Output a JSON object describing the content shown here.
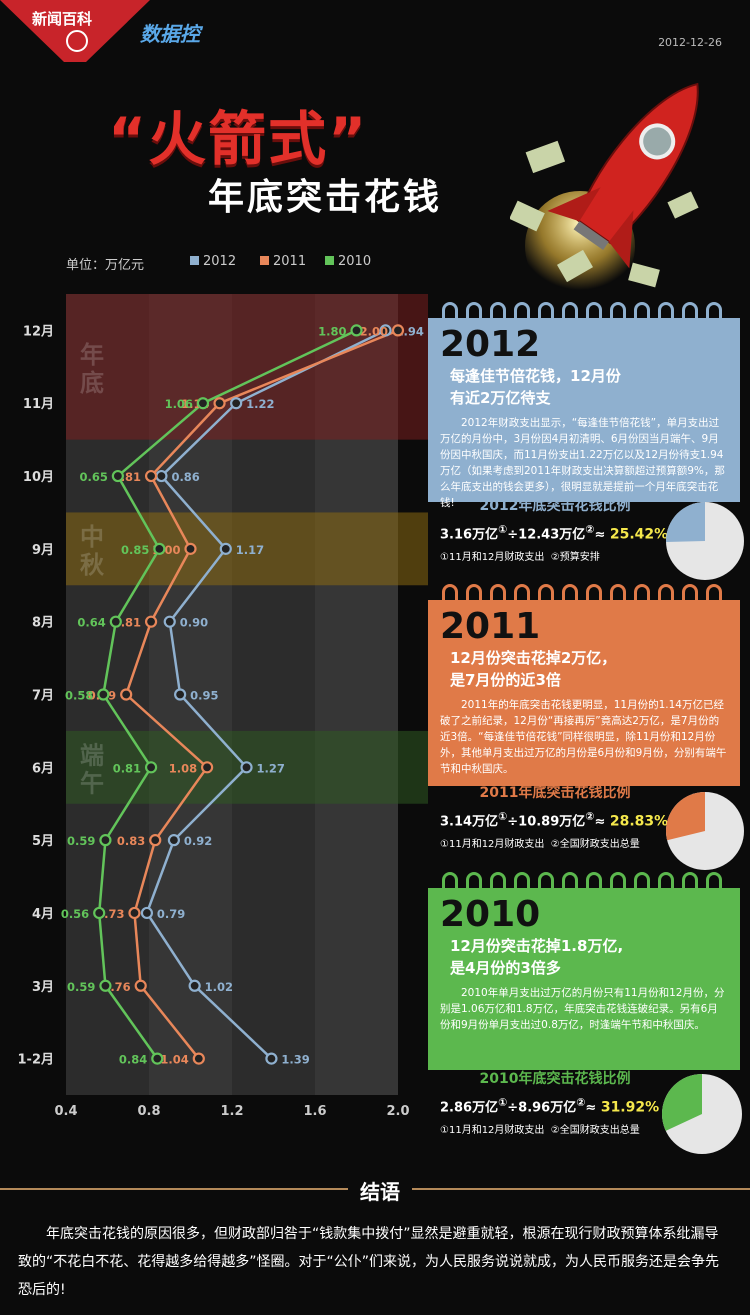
{
  "header": {
    "brand": "新闻百科",
    "column": "数据控",
    "date": "2012-12-26",
    "title_main": "“火箭式”",
    "title_sub": "年底突击花钱"
  },
  "unit_label": "单位：万亿元",
  "chart_data": {
    "type": "line",
    "orientation": "horizontal-value-axis",
    "ylabel": "单位：万亿元",
    "categories": [
      "1-2月",
      "3月",
      "4月",
      "5月",
      "6月",
      "7月",
      "8月",
      "9月",
      "10月",
      "11月",
      "12月"
    ],
    "xlim": [
      0.4,
      2.0
    ],
    "x_ticks": [
      "0.4",
      "0.8",
      "1.2",
      "1.6",
      "2.0"
    ],
    "series": [
      {
        "name": "2012",
        "color": "#8fb0cf",
        "values": [
          1.39,
          1.02,
          0.79,
          0.92,
          1.27,
          0.95,
          0.9,
          1.17,
          0.86,
          1.22,
          1.94
        ]
      },
      {
        "name": "2011",
        "color": "#e8875a",
        "values": [
          1.04,
          0.76,
          0.73,
          0.83,
          1.08,
          0.69,
          0.81,
          1.0,
          0.81,
          1.14,
          2.0
        ]
      },
      {
        "name": "2010",
        "color": "#62c45a",
        "values": [
          0.84,
          0.59,
          0.56,
          0.59,
          0.81,
          0.58,
          0.64,
          0.85,
          0.65,
          1.06,
          1.8
        ]
      }
    ],
    "bands": [
      {
        "label": "年底",
        "color": "#7a1f1f"
      },
      {
        "label": "中秋",
        "color": "#8a6a12"
      },
      {
        "label": "端午",
        "color": "#2f5a22"
      }
    ],
    "legend": "top"
  },
  "cards": [
    {
      "year": "2012",
      "headline": "每逢佳节倍花钱，12月份有近2万亿待支",
      "paragraph": "2012年财政支出显示，“每逢佳节倍花钱”，单月支出过万亿的月份中，3月份因4月初清明、6月份因当月端午、9月份因中秋国庆，而11月份支出1.22万亿以及12月份待支1.94万亿（如果考虑到2011年财政支出决算额超过预算额9%，那么年底支出的钱会更多），很明显就是提前一个月年底突击花钱!",
      "color": "#8fb0cf"
    },
    {
      "year": "2011",
      "headline": "12月份突击花掉2万亿，是7月份的近3倍",
      "paragraph": "2011年的年底突击花钱更明显，11月份的1.14万亿已经破了之前纪录，12月份“再接再厉”竟高达2万亿，是7月份的近3倍。“每逢佳节倍花钱”同样很明显，除11月份和12月份外，其他单月支出过万亿的月份是6月份和9月份，分别有端午节和中秋国庆。",
      "color": "#e07a48"
    },
    {
      "year": "2010",
      "headline": "12月份突击花掉1.8万亿,是4月份的3倍多",
      "paragraph": "2010年单月支出过万亿的月份只有11月份和12月份，分别是1.06万亿和1.8万亿，年底突击花钱连破纪录。另有6月份和9月份单月支出过0.8万亿，时逢端午节和中秋国庆。",
      "color": "#5cb84e"
    }
  ],
  "ratios": [
    {
      "title": "2012年底突击花钱比例",
      "a": "3.16万亿",
      "b": "12.43万亿",
      "result": "25.42%",
      "note1": "①11月和12月财政支出",
      "note2": "②预算安排",
      "fraction": 0.2542,
      "color": "#8fb0cf"
    },
    {
      "title": "2011年底突击花钱比例",
      "a": "3.14万亿",
      "b": "10.89万亿",
      "result": "28.83%",
      "note1": "①11月和12月财政支出",
      "note2": "②全国财政支出总量",
      "fraction": 0.2883,
      "color": "#e07a48"
    },
    {
      "title": "2010年底突击花钱比例",
      "a": "2.86万亿",
      "b": "8.96万亿",
      "result": "31.92%",
      "note1": "①11月和12月财政支出",
      "note2": "②全国财政支出总量",
      "fraction": 0.3192,
      "color": "#5cb84e"
    }
  ],
  "conclusion": {
    "title": "结语",
    "text": "年底突击花钱的原因很多，但财政部归咎于“钱款集中拨付”显然是避重就轻，根源在现行财政预算体系纰漏导致的“不花白不花、花得越多给得越多”怪圈。对于“公仆”们来说，为人民服务说说就成，为人民币服务还是会争先恐后的!"
  }
}
